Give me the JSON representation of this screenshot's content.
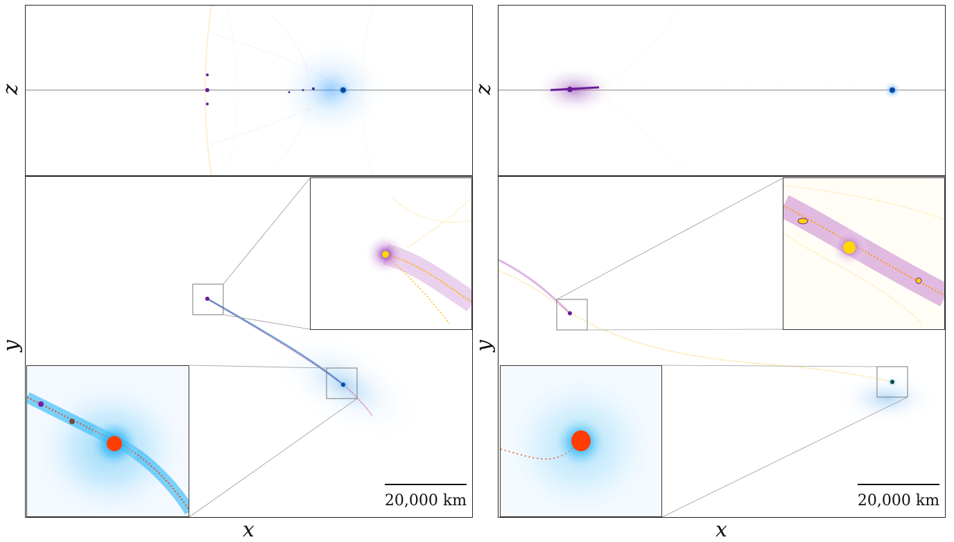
{
  "figure": {
    "left": {
      "z_axis_label": "z",
      "y_axis_label": "y",
      "x_axis_label": "x",
      "scale_bar_label": "20,000 km"
    },
    "right": {
      "z_axis_label": "z",
      "y_axis_label": "y",
      "x_axis_label": "x",
      "scale_bar_label": "20,000 km"
    }
  },
  "colors": {
    "panel_border": "#222222",
    "debris_blue": "#1e90ff",
    "debris_purple": "#7b1fa2",
    "debris_orange": "#ff9800",
    "core_red": "#ff3d00",
    "core_yellow": "#ffd600"
  }
}
